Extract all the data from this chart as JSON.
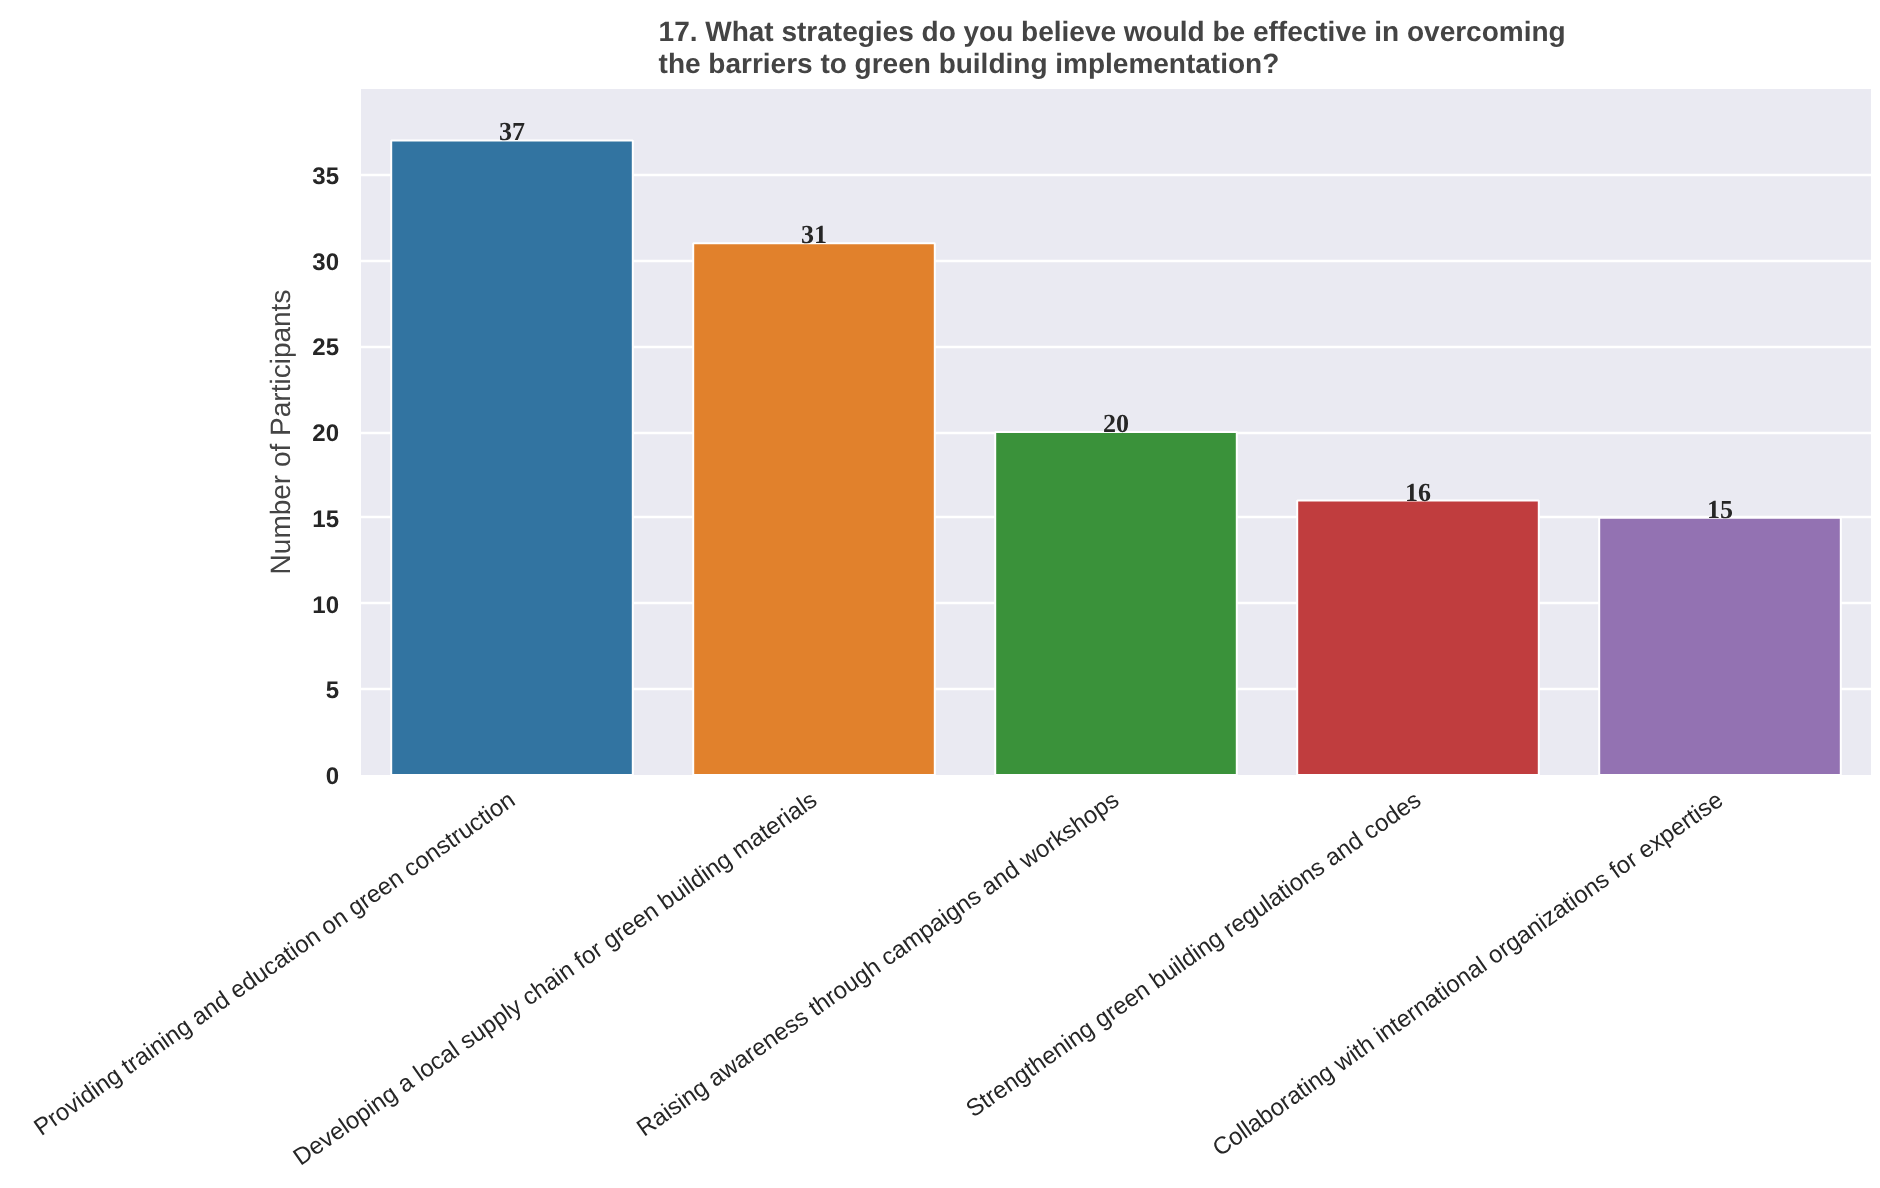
{
  "chart_data": {
    "type": "bar",
    "title": "17.  What strategies do you believe would be effective in overcoming\nthe barriers to green building implementation?",
    "ylabel": "Number of Participants",
    "categories": [
      "Providing training and education on green construction",
      "Developing a local supply chain for green building materials",
      "Raising awareness through campaigns and workshops",
      "Strengthening green building regulations and codes",
      "Collaborating with international organizations for expertise"
    ],
    "values": [
      37,
      31,
      20,
      16,
      15
    ],
    "colors": [
      "#3274a1",
      "#e1812c",
      "#3a923a",
      "#c03d3e",
      "#9372b2"
    ],
    "ylim": [
      0,
      40
    ],
    "yticks": [
      0,
      5,
      10,
      15,
      20,
      25,
      30,
      35
    ],
    "grid": "y",
    "data_labels": true
  }
}
